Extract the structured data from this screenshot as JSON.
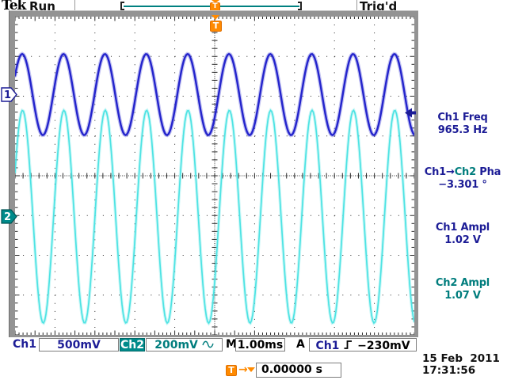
{
  "header": {
    "logo": "Tek",
    "acq_status": "Run",
    "trigger_status": "Trig'd",
    "trigger_marker": "T"
  },
  "display": {
    "divisions": {
      "horizontal": 10,
      "vertical": 8
    },
    "channels": [
      {
        "label": "Ch1",
        "marker": "1",
        "scale": "500mV",
        "volts_per_div": 0.5,
        "amplitude_v": 1.02,
        "frequency_hz": 965.3,
        "position_div": 2.04,
        "phase_deg": 0,
        "color": "#2424cc"
      },
      {
        "label": "Ch2",
        "marker": "2",
        "scale": "200mV",
        "volts_per_div": 0.2,
        "amplitude_v": 1.07,
        "frequency_hz": 965.3,
        "position_div": -1.03,
        "phase_deg": -3.301,
        "color": "#4de3e3",
        "coupling_icon": "ac-sine"
      }
    ],
    "timebase": {
      "label": "M",
      "value": "1.00ms",
      "seconds_per_div": 0.001
    },
    "trigger": {
      "mode_label": "A",
      "source": "Ch1",
      "slope_icon": "rising-edge",
      "level_label": "−230mV",
      "level_v": -0.23,
      "marker": "T",
      "position_label": "0.00000 s"
    }
  },
  "measurements": [
    {
      "label": "Ch1 Freq",
      "value": "965.3 Hz"
    },
    {
      "label_prefix": "Ch1→",
      "label_ch2": "Ch2",
      "label_suffix": " Pha",
      "value": "−3.301 °"
    },
    {
      "label": "Ch1 Ampl",
      "value": "1.02 V"
    },
    {
      "label": "Ch2 Ampl",
      "value": "1.07 V"
    }
  ],
  "datetime": {
    "date": "15 Feb  2011",
    "time": "17:31:56"
  },
  "colors": {
    "ch1": "#2424cc",
    "ch2": "#4de3e3",
    "ch2_badge": "#008b8b",
    "navy_text": "#1c1c96",
    "teal_text": "#007d7d",
    "orange": "#ff8a00",
    "graticule": "#2a2a2a"
  }
}
